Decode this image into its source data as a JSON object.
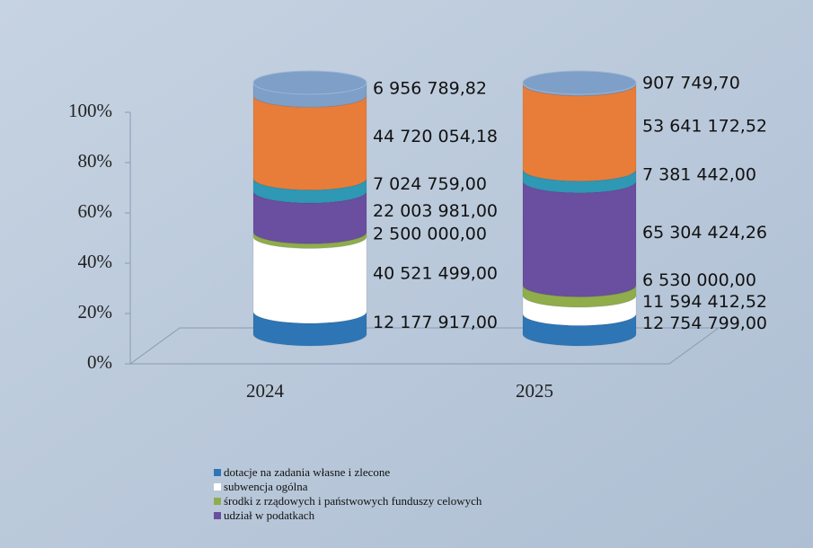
{
  "chart_data": {
    "type": "cylinder_stacked_100",
    "categories": [
      "2024",
      "2025"
    ],
    "series": [
      {
        "name": "dotacje na zadania własne i zlecone",
        "color": "#2e75b6",
        "values": [
          12177917.0,
          12754799.0
        ],
        "value_labels": [
          "12 177 917,00",
          "12 754 799,00"
        ]
      },
      {
        "name": "subwencja ogólna",
        "color": "#ffffff",
        "values": [
          40521499.0,
          11594412.52
        ],
        "value_labels": [
          "40 521 499,00",
          "11 594 412,52"
        ]
      },
      {
        "name": "środki z rządowych i państwowych funduszy celowych",
        "color": "#8fad4a",
        "values": [
          2500000.0,
          6530000.0
        ],
        "value_labels": [
          "2 500 000,00",
          "6 530 000,00"
        ]
      },
      {
        "name": "udział w podatkach",
        "color": "#6a4ea0",
        "values": [
          22003981.0,
          65304424.26
        ],
        "value_labels": [
          "22 003 981,00",
          "65 304 424,26"
        ]
      },
      {
        "color": "#2e98b5",
        "values": [
          7024759.0,
          7381442.0
        ],
        "value_labels": [
          "7 024 759,00",
          "7 381 442,00"
        ]
      },
      {
        "color": "#e87d3a",
        "values": [
          44720054.18,
          53641172.52
        ],
        "value_labels": [
          "44 720 054,18",
          "53 641 172,52"
        ]
      },
      {
        "color": "#7d9fc8",
        "values": [
          6956789.82,
          907749.7
        ],
        "value_labels": [
          "6 956 789,82",
          "907 749,70"
        ]
      }
    ],
    "ylim": [
      0,
      100
    ],
    "yticks": [
      {
        "value": 0,
        "label": "0%"
      },
      {
        "value": 20,
        "label": "20%"
      },
      {
        "value": 40,
        "label": "40%"
      },
      {
        "value": 60,
        "label": "60%"
      },
      {
        "value": 80,
        "label": "80%"
      },
      {
        "value": 100,
        "label": "100%"
      }
    ]
  }
}
